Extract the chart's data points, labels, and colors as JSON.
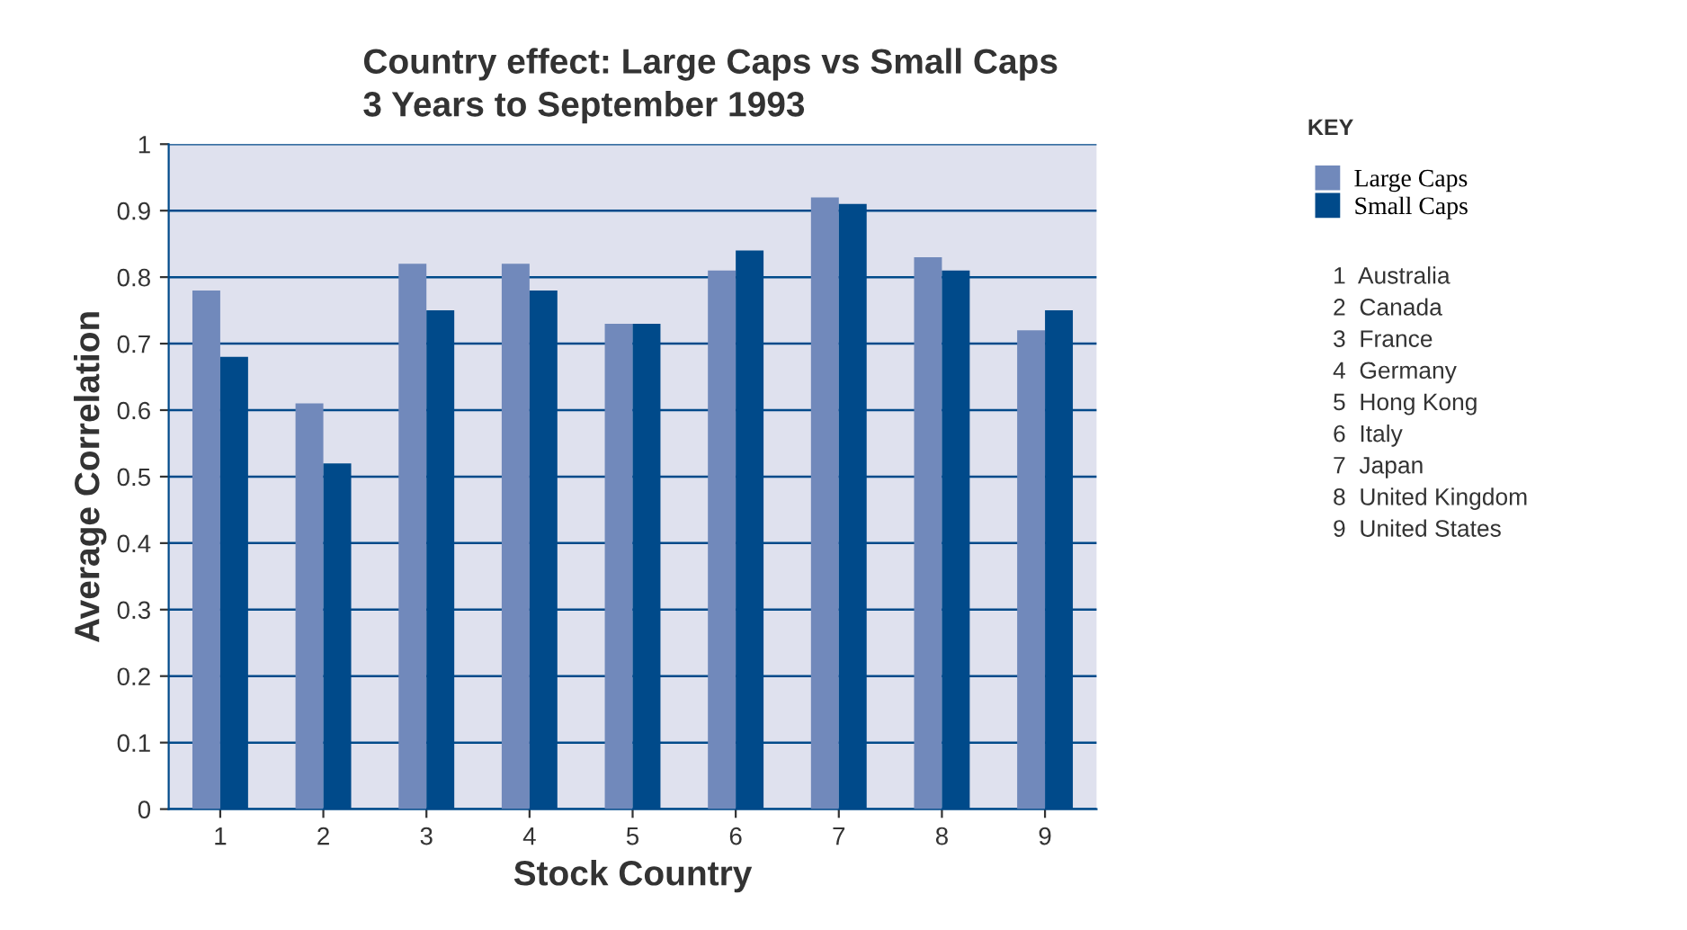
{
  "chart_data": {
    "type": "bar",
    "title": "Country effect: Large Caps vs Small Caps\n3 Years to September 1993",
    "xlabel": "Stock Country",
    "ylabel": "Average Correlation",
    "legend_title": "KEY",
    "legend": "right",
    "grid": "y",
    "categories": [
      "1",
      "2",
      "3",
      "4",
      "5",
      "6",
      "7",
      "8",
      "9"
    ],
    "series": [
      {
        "name": "Large Caps",
        "color": "#7189bb",
        "values": [
          0.78,
          0.61,
          0.82,
          0.82,
          0.73,
          0.81,
          0.92,
          0.83,
          0.72
        ]
      },
      {
        "name": "Small Caps",
        "color": "#004a8a",
        "values": [
          0.68,
          0.52,
          0.75,
          0.78,
          0.73,
          0.84,
          0.91,
          0.81,
          0.75
        ]
      }
    ],
    "ylim": [
      0,
      1
    ],
    "yticks": [
      0,
      0.1,
      0.2,
      0.3,
      0.4,
      0.5,
      0.6,
      0.7,
      0.8,
      0.9,
      1
    ],
    "annotations": [
      "1  Australia",
      "2  Canada",
      "3  France",
      "4  Germany",
      "5  Hong Kong",
      "6  Italy",
      "7  Japan",
      "8  United Kingdom",
      "9  United States"
    ]
  }
}
